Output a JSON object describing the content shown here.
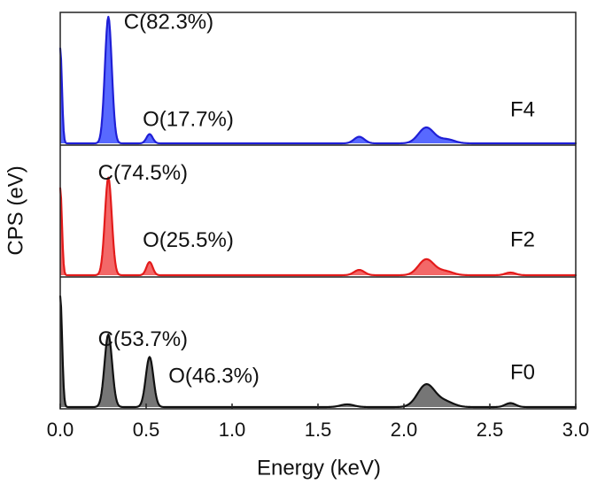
{
  "chart_data": {
    "type": "area",
    "title": "",
    "xlabel": "Energy (keV)",
    "ylabel": "CPS (eV)",
    "xlim": [
      0.0,
      3.0
    ],
    "xticks": [
      0.0,
      0.5,
      1.0,
      1.5,
      2.0,
      2.5,
      3.0
    ],
    "xtick_labels": [
      "0.0",
      "0.5",
      "1.0",
      "1.5",
      "2.0",
      "2.5",
      "3.0"
    ],
    "panels": [
      {
        "name": "F4",
        "color": "#1f1fd6",
        "fill": "#4a5cff",
        "peaks": [
          {
            "x": 0.0,
            "y": 0.72,
            "w": 0.01
          },
          {
            "x": 0.28,
            "y": 0.96,
            "w": 0.02
          },
          {
            "x": 0.52,
            "y": 0.07,
            "w": 0.018
          },
          {
            "x": 1.74,
            "y": 0.05,
            "w": 0.03
          },
          {
            "x": 2.13,
            "y": 0.12,
            "w": 0.045
          },
          {
            "x": 2.25,
            "y": 0.03,
            "w": 0.045
          }
        ],
        "labels": [
          {
            "text": "C(82.3%)",
            "x": 0.37,
            "y": 0.92
          },
          {
            "text": "O(17.7%)",
            "x": 0.48,
            "y": 0.18
          }
        ]
      },
      {
        "name": "F2",
        "color": "#e31b1b",
        "fill": "#f25b5b",
        "peaks": [
          {
            "x": 0.0,
            "y": 0.66,
            "w": 0.01
          },
          {
            "x": 0.28,
            "y": 0.74,
            "w": 0.02
          },
          {
            "x": 0.52,
            "y": 0.1,
            "w": 0.018
          },
          {
            "x": 1.74,
            "y": 0.04,
            "w": 0.03
          },
          {
            "x": 2.13,
            "y": 0.12,
            "w": 0.045
          },
          {
            "x": 2.24,
            "y": 0.03,
            "w": 0.045
          },
          {
            "x": 2.62,
            "y": 0.02,
            "w": 0.03
          }
        ],
        "labels": [
          {
            "text": "C(74.5%)",
            "x": 0.22,
            "y": 0.78
          },
          {
            "text": "O(25.5%)",
            "x": 0.48,
            "y": 0.27
          }
        ]
      },
      {
        "name": "F0",
        "color": "#111111",
        "fill": "#6a6a6a",
        "peaks": [
          {
            "x": 0.0,
            "y": 0.84,
            "w": 0.011
          },
          {
            "x": 0.28,
            "y": 0.55,
            "w": 0.022
          },
          {
            "x": 0.52,
            "y": 0.38,
            "w": 0.022
          },
          {
            "x": 1.67,
            "y": 0.02,
            "w": 0.04
          },
          {
            "x": 2.13,
            "y": 0.17,
            "w": 0.05
          },
          {
            "x": 2.24,
            "y": 0.04,
            "w": 0.05
          },
          {
            "x": 2.62,
            "y": 0.03,
            "w": 0.03
          }
        ],
        "labels": [
          {
            "text": "C(53.7%)",
            "x": 0.22,
            "y": 0.52
          },
          {
            "text": "O(46.3%)",
            "x": 0.63,
            "y": 0.24
          }
        ]
      }
    ]
  }
}
